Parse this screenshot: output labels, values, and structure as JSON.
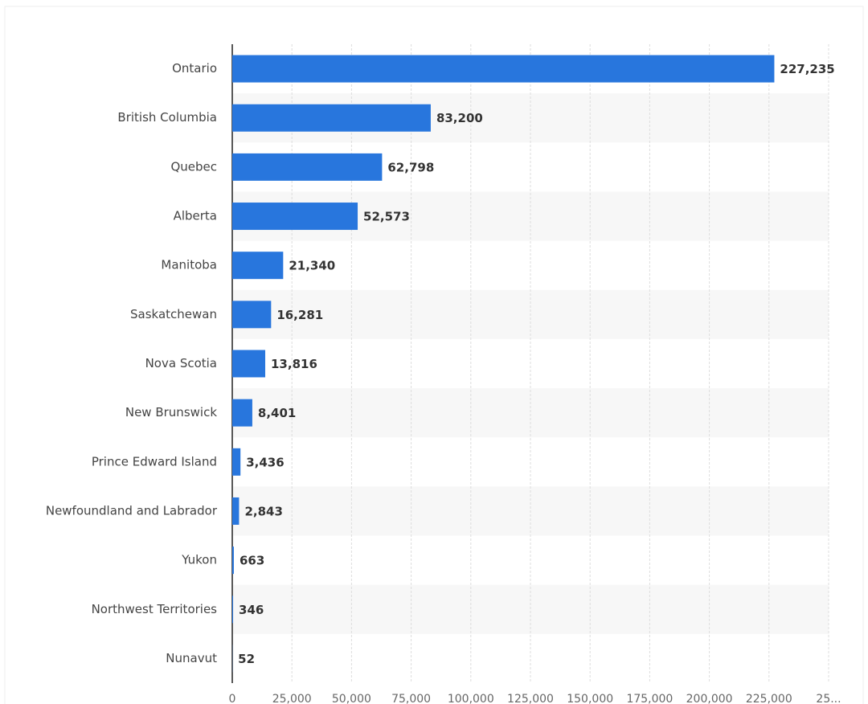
{
  "chart_data": {
    "type": "bar",
    "orientation": "horizontal",
    "categories": [
      "Ontario",
      "British Columbia",
      "Quebec",
      "Alberta",
      "Manitoba",
      "Saskatchewan",
      "Nova Scotia",
      "New Brunswick",
      "Prince Edward Island",
      "Newfoundland and Labrador",
      "Yukon",
      "Northwest Territories",
      "Nunavut"
    ],
    "values": [
      227235,
      83200,
      62798,
      52573,
      21340,
      16281,
      13816,
      8401,
      3436,
      2843,
      663,
      346,
      52
    ],
    "value_labels": [
      "227,235",
      "83,200",
      "62,798",
      "52,573",
      "21,340",
      "16,281",
      "13,816",
      "8,401",
      "3,436",
      "2,843",
      "663",
      "346",
      "52"
    ],
    "color": "#2876dd",
    "xlim": [
      0,
      250000
    ],
    "xticks": [
      0,
      {
        "value": 25000,
        "label": "25,000"
      },
      {
        "value": 50000,
        "label": "50,000"
      },
      {
        "value": 75000,
        "label": "75,000"
      },
      {
        "value": 100000,
        "label": "100,000"
      },
      {
        "value": 125000,
        "label": "125,000"
      },
      {
        "value": 150000,
        "label": "150,000"
      },
      {
        "value": 175000,
        "label": "175,000"
      },
      {
        "value": 200000,
        "label": "200,000"
      },
      {
        "value": 225000,
        "label": "225,000"
      },
      {
        "value": 250000,
        "label": "25..."
      }
    ],
    "grid": true
  }
}
